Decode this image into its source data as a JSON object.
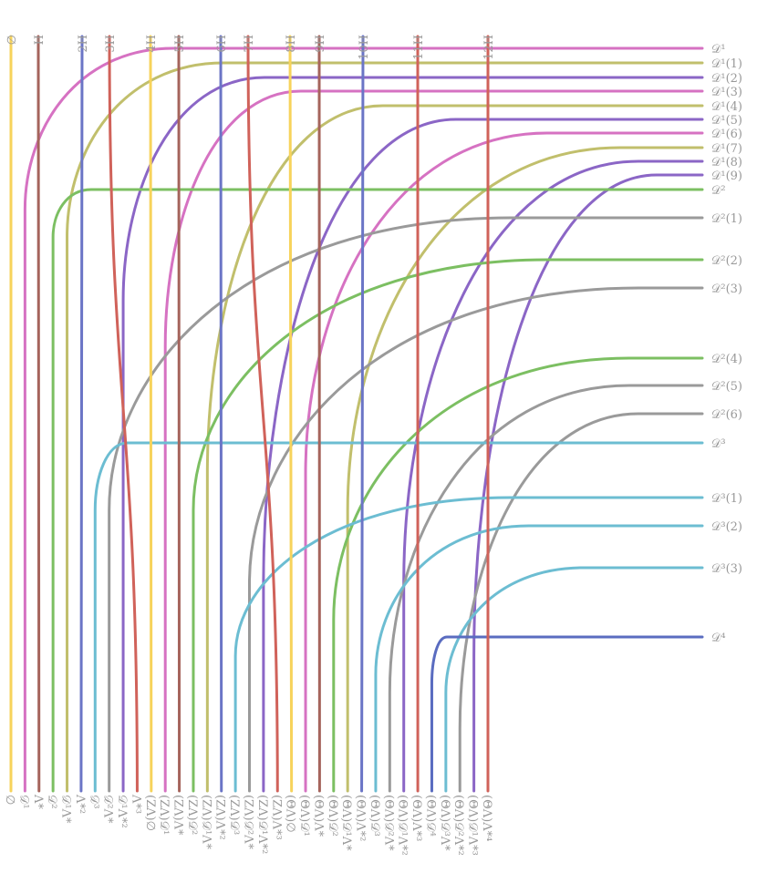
{
  "top_labels": [
    "∅",
    "H",
    "2H",
    "3H",
    "4H",
    "5H",
    "6H",
    "7H",
    "8H",
    "9H",
    "10H",
    "11H",
    "12H"
  ],
  "right_labels": [
    "𝒟¹",
    "𝒟¹(1)",
    "𝒟¹(2)",
    "𝒟¹(3)",
    "𝒟¹(4)",
    "𝒟¹(5)",
    "𝒟¹(6)",
    "𝒟¹(7)",
    "𝒟¹(8)",
    "𝒟¹(9)",
    "𝒟²",
    "𝒟²(1)",
    "𝒟²(2)",
    "𝒟²(3)",
    "𝒟²(4)",
    "𝒟²(5)",
    "𝒟²(6)",
    "𝒟³",
    "𝒟³(1)",
    "𝒟³(2)",
    "𝒟³(3)",
    "𝒟⁴"
  ],
  "bottom_labels": [
    "∅",
    "𝒟¹",
    "Λ*",
    "𝒟²",
    "𝒟¹Λ*",
    "Λ*²",
    "𝒟³",
    "𝒟²Λ*",
    "𝒟¹Λ*²",
    "Λ*³",
    "(ZΛ)∅",
    "(ZΛ)𝒟¹",
    "(ZΛ)Λ*",
    "(ZΛ)𝒟²",
    "(ZΛ)𝒟¹Λ*",
    "(ZΛ)Λ*²",
    "(ZΛ)𝒟³",
    "(ZΛ)𝒟²Λ*",
    "(ZΛ)𝒟¹Λ*²",
    "(ZΛ)Λ*³",
    "(ΘΛ)∅",
    "(ΘΛ)𝒟¹",
    "(ΘΛ)Λ*",
    "(ΘΛ)𝒟²",
    "(ΘΛ)𝒟¹Λ*",
    "(ΘΛ)Λ*²",
    "(ΘΛ)𝒟³",
    "(ΘΛ)𝒟²Λ*",
    "(ΘΛ)𝒟¹Λ*²",
    "(ΘΛ)Λ*³",
    "(ΘΛ)𝒟⁴",
    "(ΘΛ)𝒟³Λ*",
    "(ΘΛ)𝒟²Λ*²",
    "(ΘΛ)𝒟¹Λ*³",
    "(ΘΛ)Λ*⁴"
  ]
}
